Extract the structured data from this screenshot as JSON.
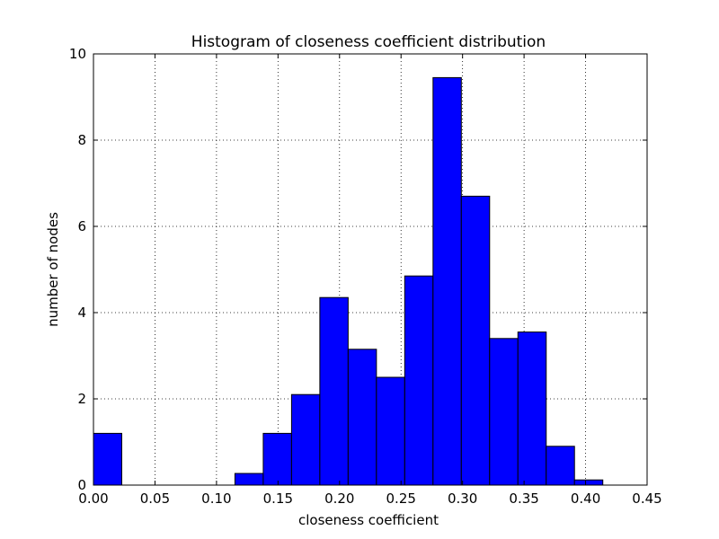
{
  "chart_data": {
    "type": "bar",
    "title": "Histogram of closeness coefficient distribution",
    "xlabel": "closeness coefficient",
    "ylabel": "number of nodes",
    "xlim": [
      0.0,
      0.45
    ],
    "ylim": [
      0,
      10
    ],
    "xticks": [
      "0.00",
      "0.05",
      "0.10",
      "0.15",
      "0.20",
      "0.25",
      "0.30",
      "0.35",
      "0.40",
      "0.45"
    ],
    "yticks": [
      "0",
      "2",
      "4",
      "6",
      "8",
      "10"
    ],
    "grid": true,
    "bar_color": "#0000ff",
    "bins": [
      {
        "x0": 0.0,
        "x1": 0.023,
        "value": 1.2
      },
      {
        "x0": 0.023,
        "x1": 0.046,
        "value": 0
      },
      {
        "x0": 0.046,
        "x1": 0.069,
        "value": 0
      },
      {
        "x0": 0.069,
        "x1": 0.092,
        "value": 0
      },
      {
        "x0": 0.092,
        "x1": 0.115,
        "value": 0
      },
      {
        "x0": 0.115,
        "x1": 0.138,
        "value": 0.27
      },
      {
        "x0": 0.138,
        "x1": 0.161,
        "value": 1.2
      },
      {
        "x0": 0.161,
        "x1": 0.184,
        "value": 2.1
      },
      {
        "x0": 0.184,
        "x1": 0.207,
        "value": 4.35
      },
      {
        "x0": 0.207,
        "x1": 0.23,
        "value": 3.15
      },
      {
        "x0": 0.23,
        "x1": 0.253,
        "value": 2.5
      },
      {
        "x0": 0.253,
        "x1": 0.276,
        "value": 4.85
      },
      {
        "x0": 0.276,
        "x1": 0.299,
        "value": 9.45
      },
      {
        "x0": 0.299,
        "x1": 0.322,
        "value": 6.7
      },
      {
        "x0": 0.322,
        "x1": 0.345,
        "value": 3.4
      },
      {
        "x0": 0.345,
        "x1": 0.368,
        "value": 3.55
      },
      {
        "x0": 0.368,
        "x1": 0.391,
        "value": 0.9
      },
      {
        "x0": 0.391,
        "x1": 0.414,
        "value": 0.12
      }
    ]
  }
}
